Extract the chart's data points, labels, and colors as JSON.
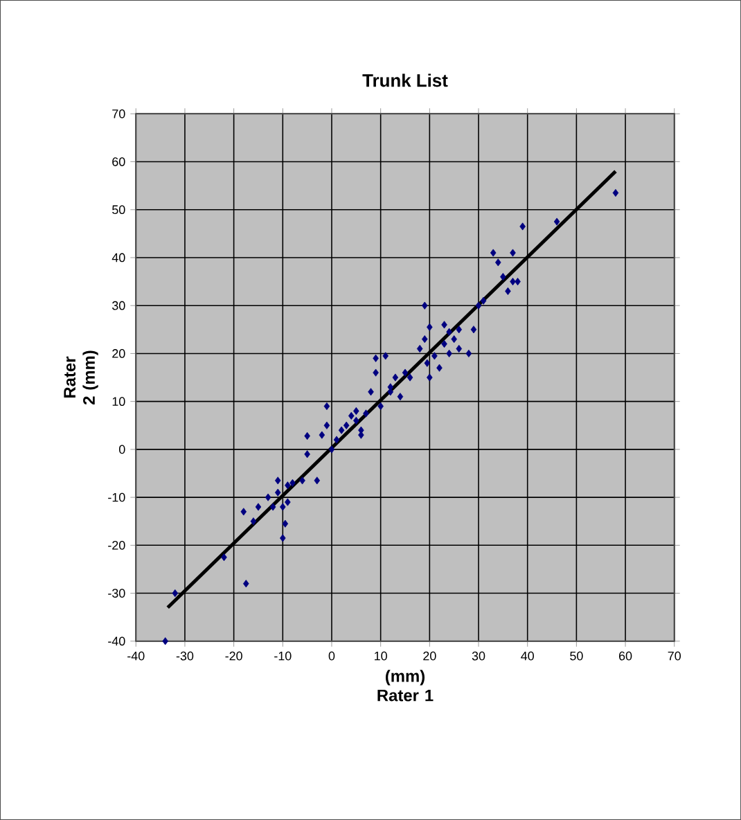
{
  "chart_data": {
    "type": "scatter",
    "title": "Trunk List",
    "xlabel": "(mm) Rater 1",
    "ylabel": "Rater 2 (mm)",
    "xlim": [
      -40,
      70
    ],
    "ylim": [
      -40,
      70
    ],
    "xticks": [
      -40,
      -30,
      -20,
      -10,
      0,
      10,
      20,
      30,
      40,
      50,
      60,
      70
    ],
    "yticks": [
      -40,
      -30,
      -20,
      -10,
      0,
      10,
      20,
      30,
      40,
      50,
      60,
      70
    ],
    "grid": true,
    "marker": "diamond",
    "series": [
      {
        "color": "#000080",
        "x": [
          -34,
          -32,
          -22,
          -17.5,
          -18,
          -16,
          -15,
          -13,
          -12,
          -11,
          -11,
          -10,
          -10,
          -9.5,
          -9,
          -9,
          -8,
          -6,
          -5,
          -5,
          -3,
          -2,
          -1,
          -1,
          0,
          1,
          2,
          3,
          4,
          5,
          5,
          6,
          6,
          7,
          8,
          9,
          9,
          10,
          11,
          12,
          12,
          13,
          14,
          15,
          16,
          18,
          19,
          19,
          19.5,
          20,
          20,
          21,
          22,
          23,
          23,
          24,
          24,
          25,
          26,
          26,
          28,
          29,
          30,
          31,
          33,
          34,
          35,
          36,
          37,
          37,
          38,
          39,
          46,
          58
        ],
        "values": [
          -40,
          -30,
          -22.5,
          -28,
          -13,
          -15,
          -12,
          -10,
          -12,
          -6.5,
          -9,
          -12,
          -18.5,
          -15.5,
          -11,
          -7.5,
          -7,
          -6.5,
          -1,
          2.8,
          -6.5,
          3,
          5,
          9,
          0,
          2,
          4,
          5,
          7,
          6,
          8,
          3,
          4,
          7.5,
          12,
          16,
          19,
          9,
          19.5,
          12,
          13,
          15,
          11,
          16,
          15,
          21,
          30,
          23,
          18,
          15,
          25.5,
          19.5,
          17,
          22,
          26,
          20,
          24.5,
          23,
          21,
          25,
          20,
          25,
          30,
          31,
          41,
          39,
          36,
          33,
          35,
          41,
          35,
          46.5,
          47.5,
          53.5
        ]
      },
      {
        "type": "line",
        "color": "#000000",
        "marker": "none",
        "x": [
          -33.5,
          58
        ],
        "values": [
          -33,
          58
        ]
      }
    ]
  }
}
